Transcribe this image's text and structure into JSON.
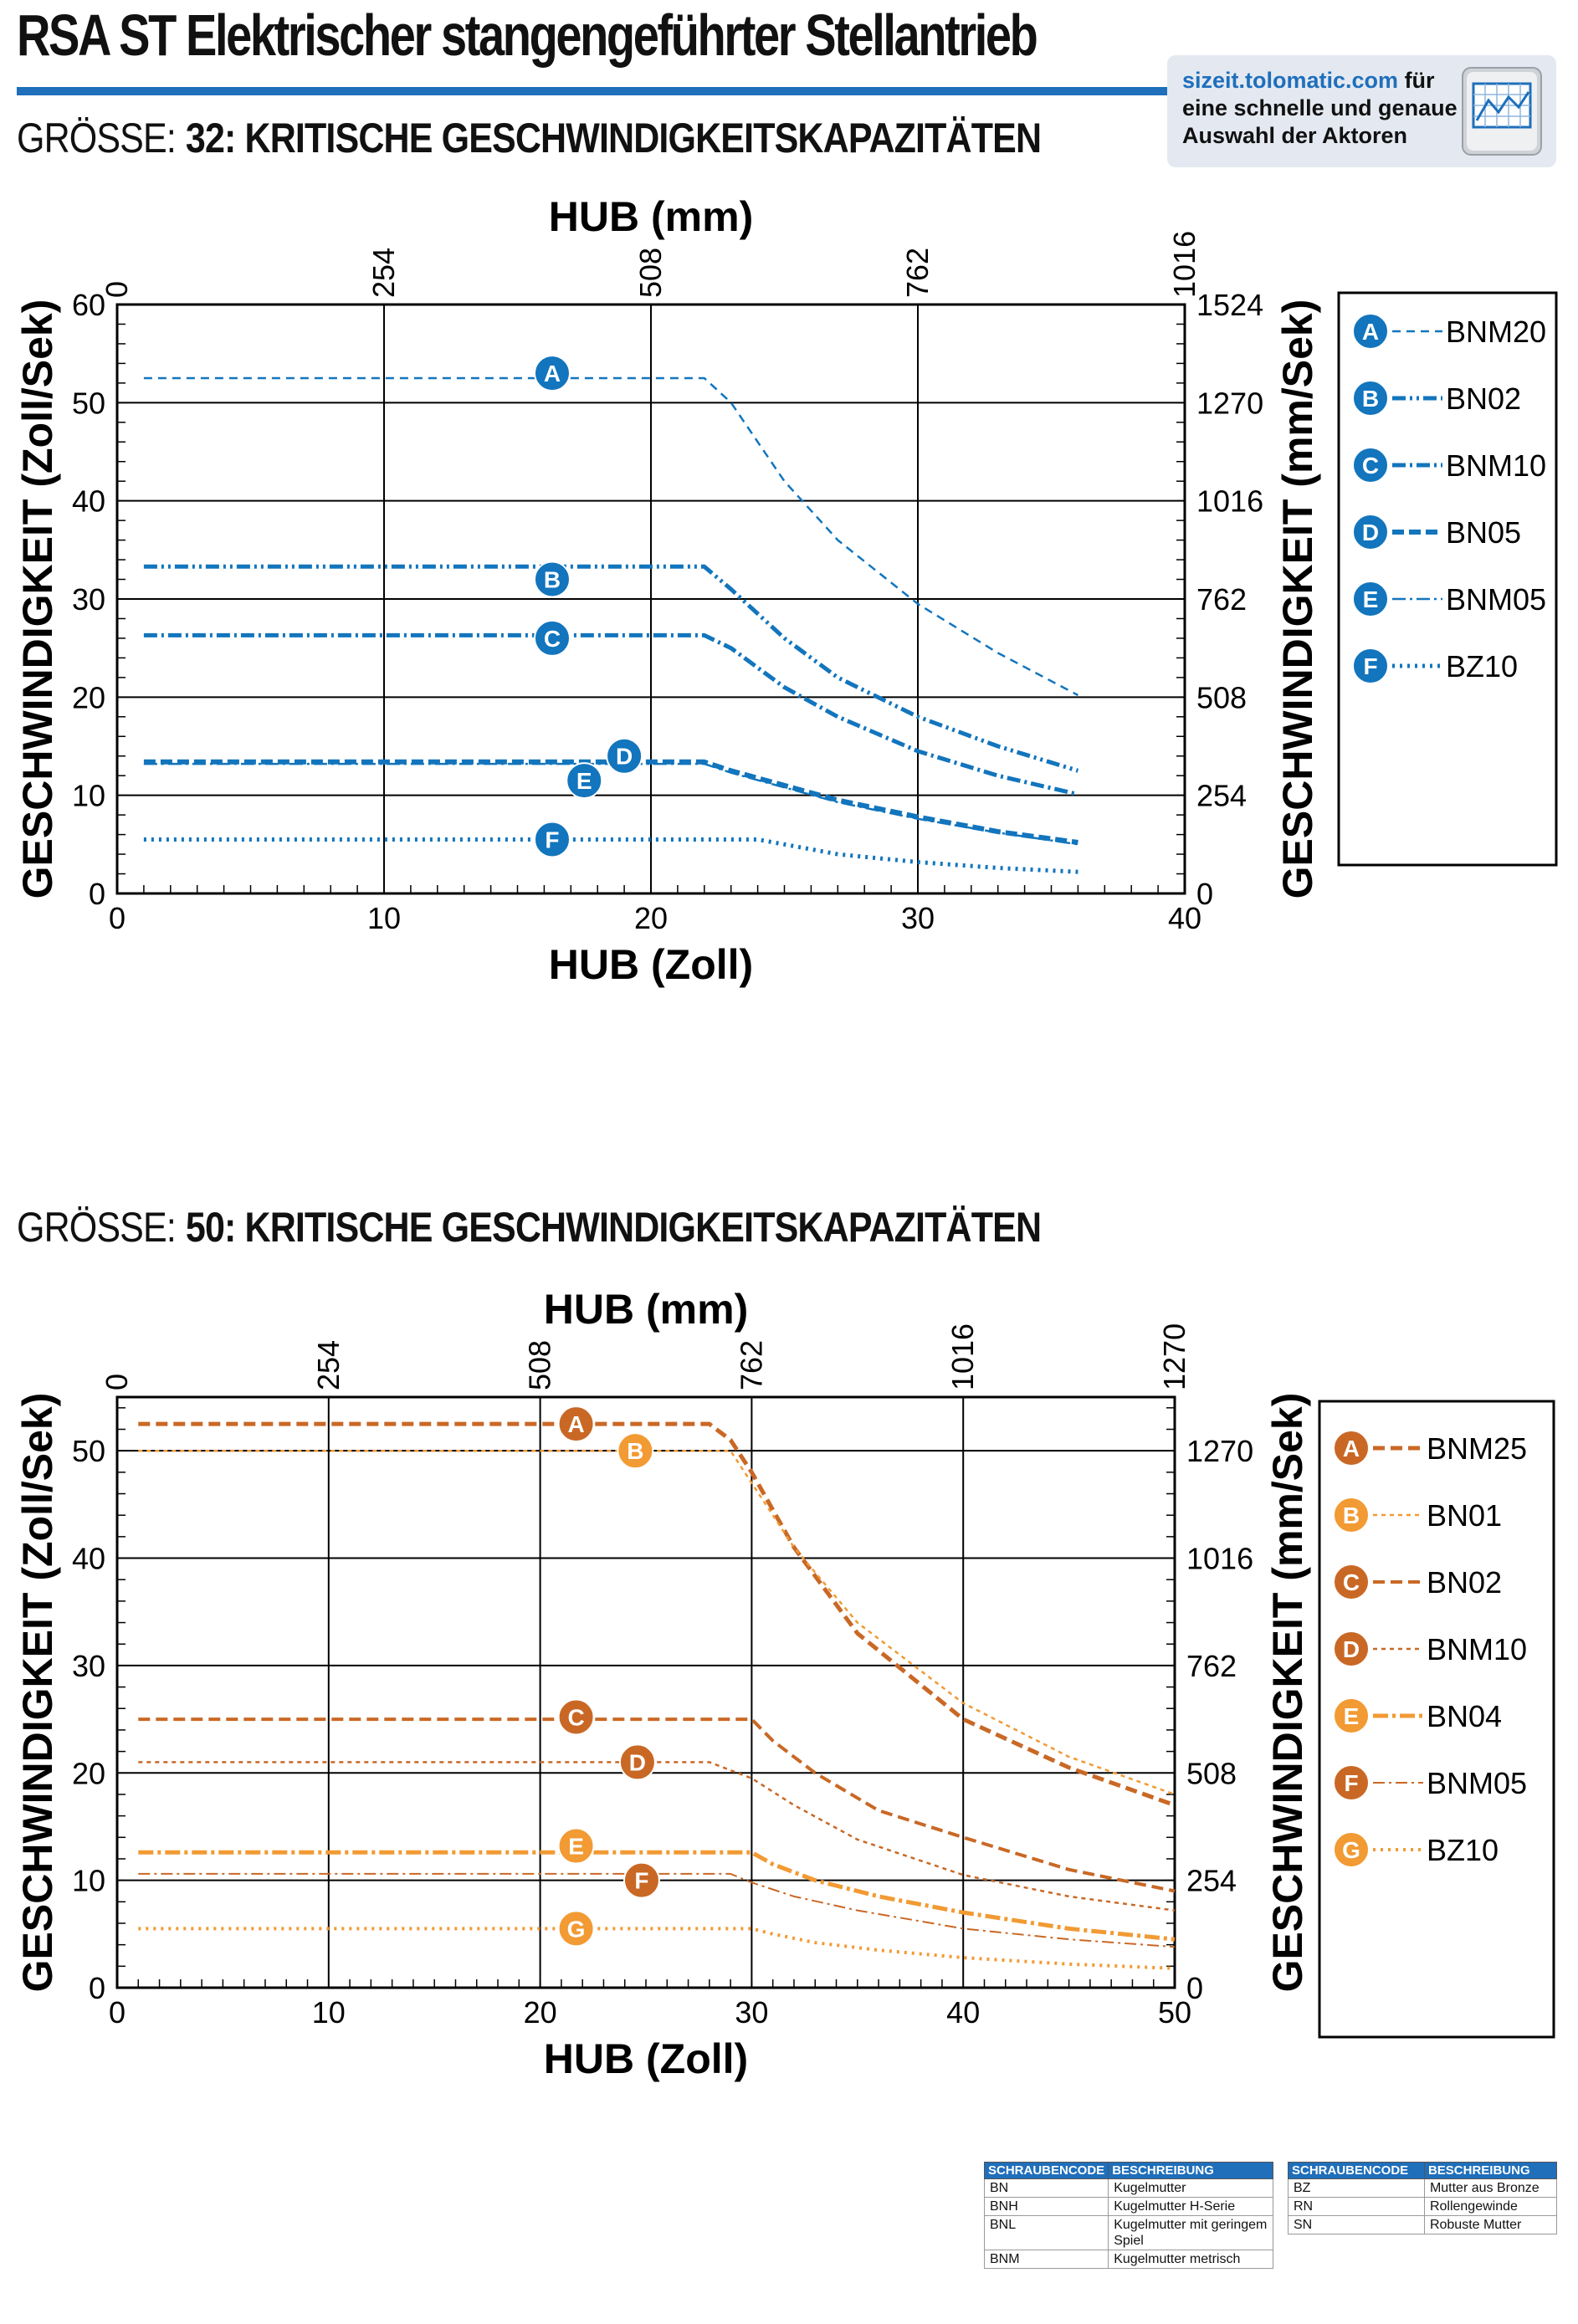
{
  "header": {
    "title": "RSA ST Elektrischer stangengeführter Stellantrieb",
    "sizeit_url": "sizeit.tolomatic.com",
    "sizeit_text": " für eine schnelle und genaue Auswahl der Aktoren",
    "sizeit_icon": "sizing-software-icon",
    "rule_color": "#1f6fbb"
  },
  "chart_data": [
    {
      "type": "line",
      "size_prefix": "GRÖSSE:",
      "title": "32: KRITISCHE GESCHWINDIGKEITSKAPAZITÄTEN",
      "xlabel": "HUB (Zoll)",
      "x2label": "HUB (mm)",
      "ylabel": "GESCHWINDIGKEIT (Zoll/Sek)",
      "y2label": "GESCHWINDIGKEIT (mm/Sek)",
      "xlim": [
        0,
        40
      ],
      "ylim": [
        0,
        60
      ],
      "x_ticks": [
        "0",
        "10",
        "20",
        "30",
        "40"
      ],
      "y_ticks": [
        "0",
        "10",
        "20",
        "30",
        "40",
        "50",
        "60"
      ],
      "x2_ticks": [
        "0",
        "254",
        "508",
        "762",
        "1016"
      ],
      "y2_ticks": [
        "0",
        "254",
        "508",
        "762",
        "1016",
        "1270",
        "1524"
      ],
      "x2_positions": [
        0,
        10,
        20,
        30,
        40
      ],
      "y2_positions": [
        0,
        10,
        20,
        30,
        40,
        50,
        60
      ],
      "grid": true,
      "legend_position": "right",
      "color": "#1275bd",
      "series": [
        {
          "name": "BNM20",
          "label": "A",
          "x": [
            1,
            22,
            23,
            25,
            27,
            30,
            33,
            36
          ],
          "y": [
            52.5,
            52.5,
            50,
            42,
            36,
            29.5,
            24.5,
            20.2
          ],
          "dash": "10,7",
          "width": 2.5,
          "marker": [
            16.3,
            53
          ]
        },
        {
          "name": "BN02",
          "label": "B",
          "x": [
            1,
            22,
            23,
            25,
            27,
            30,
            33,
            36
          ],
          "y": [
            33.3,
            33.3,
            31,
            26,
            22,
            18,
            15,
            12.5
          ],
          "dash": "16,5,3,5,3,5",
          "width": 5,
          "marker": [
            16.3,
            32
          ]
        },
        {
          "name": "BNM10",
          "label": "C",
          "x": [
            1,
            22,
            23,
            25,
            27,
            30,
            33,
            36
          ],
          "y": [
            26.3,
            26.3,
            25,
            21,
            18,
            14.5,
            12,
            10.1
          ],
          "dash": "16,5,3,5",
          "width": 5,
          "marker": [
            16.3,
            26
          ]
        },
        {
          "name": "BN05",
          "label": "D",
          "x": [
            1,
            22,
            23,
            25,
            27,
            30,
            33,
            36
          ],
          "y": [
            13.4,
            13.4,
            12.5,
            11,
            9.5,
            7.8,
            6.3,
            5.2
          ],
          "dash": "14,6",
          "width": 6,
          "marker": [
            19,
            14
          ]
        },
        {
          "name": "BNM05",
          "label": "E",
          "x": [
            1,
            22,
            23,
            25,
            27,
            30,
            33,
            36
          ],
          "y": [
            13.2,
            13.2,
            12.3,
            10.8,
            9.3,
            7.6,
            6.2,
            5.0
          ],
          "dash": "16,5,3,5",
          "width": 2.5,
          "marker": [
            17.5,
            11.5
          ]
        },
        {
          "name": "BZ10",
          "label": "F",
          "x": [
            1,
            24,
            25,
            27,
            30,
            33,
            36
          ],
          "y": [
            5.5,
            5.5,
            5.0,
            4.0,
            3.2,
            2.6,
            2.2
          ],
          "dash": "3,6",
          "width": 5,
          "marker": [
            16.3,
            5.5
          ]
        }
      ]
    },
    {
      "type": "line",
      "size_prefix": "GRÖSSE:",
      "title": "50: KRITISCHE GESCHWINDIGKEITSKAPAZITÄTEN",
      "xlabel": "HUB (Zoll)",
      "x2label": "HUB (mm)",
      "ylabel": "GESCHWINDIGKEIT (Zoll/Sek)",
      "y2label": "GESCHWINDIGKEIT (mm/Sek)",
      "xlim": [
        0,
        50
      ],
      "ylim": [
        0,
        55
      ],
      "x_ticks": [
        "0",
        "10",
        "20",
        "30",
        "40",
        "50"
      ],
      "y_ticks": [
        "0",
        "10",
        "20",
        "30",
        "40",
        "50"
      ],
      "x2_ticks": [
        "0",
        "254",
        "508",
        "762",
        "1016",
        "1270"
      ],
      "y2_ticks": [
        "0",
        "254",
        "508",
        "762",
        "1016",
        "1270"
      ],
      "x2_positions": [
        0,
        10,
        20,
        30,
        40,
        50
      ],
      "y2_positions": [
        0,
        10,
        20,
        30,
        40,
        50
      ],
      "grid": true,
      "legend_position": "right",
      "colors": {
        "dark": "#c96825",
        "light": "#f29a33"
      },
      "series": [
        {
          "name": "BNM25",
          "label": "A",
          "color": "#c96825",
          "x": [
            1,
            28,
            29,
            30,
            32,
            35,
            40,
            45,
            50
          ],
          "y": [
            52.5,
            52.5,
            51,
            48,
            41,
            33,
            25,
            20.5,
            17
          ],
          "dash": "14,7",
          "width": 5,
          "marker": [
            21.7,
            52.5
          ]
        },
        {
          "name": "BN01",
          "label": "B",
          "color": "#f29a33",
          "x": [
            1,
            29,
            30,
            32,
            35,
            40,
            45,
            50
          ],
          "y": [
            50,
            50,
            47,
            41,
            34,
            26.5,
            21.5,
            18
          ],
          "dash": "5,5",
          "width": 2.5,
          "marker": [
            24.5,
            50
          ]
        },
        {
          "name": "BN02",
          "label": "C",
          "color": "#c96825",
          "x": [
            1,
            30,
            31,
            33,
            36,
            40,
            45,
            50
          ],
          "y": [
            25,
            25,
            23,
            20,
            16.5,
            14,
            11,
            9
          ],
          "dash": "14,7",
          "width": 4,
          "marker": [
            21.7,
            25.2
          ]
        },
        {
          "name": "BNM10",
          "label": "D",
          "color": "#c96825",
          "x": [
            1,
            28,
            30,
            32,
            35,
            40,
            45,
            50
          ],
          "y": [
            21,
            21,
            19.5,
            17,
            13.8,
            10.5,
            8.5,
            7.2
          ],
          "dash": "5,5",
          "width": 2.5,
          "marker": [
            24.6,
            21
          ]
        },
        {
          "name": "BN04",
          "label": "E",
          "color": "#f29a33",
          "x": [
            1,
            30,
            31,
            33,
            36,
            40,
            45,
            50
          ],
          "y": [
            12.6,
            12.6,
            11.5,
            10,
            8.5,
            7,
            5.5,
            4.5
          ],
          "dash": "18,5,4,5",
          "width": 5,
          "marker": [
            21.7,
            13.2
          ]
        },
        {
          "name": "BNM05",
          "label": "F",
          "color": "#c96825",
          "x": [
            1,
            29,
            30,
            32,
            35,
            40,
            45,
            50
          ],
          "y": [
            10.6,
            10.6,
            9.8,
            8.5,
            7.2,
            5.5,
            4.5,
            3.8
          ],
          "dash": "14,5,3,5",
          "width": 2,
          "marker": [
            24.8,
            10
          ]
        },
        {
          "name": "BZ10",
          "label": "G",
          "color": "#f29a33",
          "x": [
            1,
            30,
            31,
            33,
            36,
            40,
            45,
            50
          ],
          "y": [
            5.5,
            5.5,
            5,
            4.2,
            3.5,
            2.8,
            2.2,
            1.8
          ],
          "dash": "3,6",
          "width": 4,
          "marker": [
            21.7,
            5.5
          ]
        }
      ]
    }
  ],
  "code_tables": [
    {
      "headers": [
        "SCHRAUBENCODE",
        "BESCHREIBUNG"
      ],
      "rows": [
        [
          "BN",
          "Kugelmutter"
        ],
        [
          "BNH",
          "Kugelmutter H-Serie"
        ],
        [
          "BNL",
          "Kugelmutter mit geringem Spiel"
        ],
        [
          "BNM",
          "Kugelmutter metrisch"
        ]
      ]
    },
    {
      "headers": [
        "SCHRAUBENCODE",
        "BESCHREIBUNG"
      ],
      "rows": [
        [
          "BZ",
          "Mutter aus Bronze"
        ],
        [
          "RN",
          "Rollengewinde"
        ],
        [
          "SN",
          "Robuste Mutter"
        ]
      ]
    }
  ]
}
